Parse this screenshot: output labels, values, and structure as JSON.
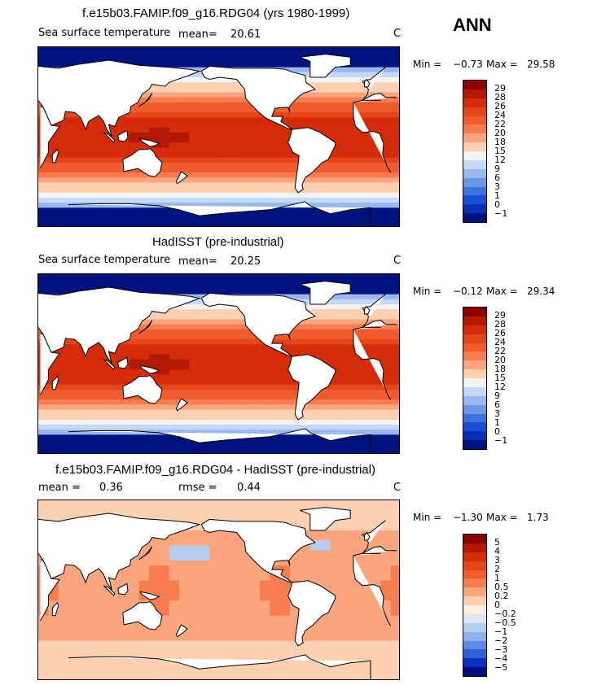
{
  "header": {
    "season": "ANN",
    "units": "C"
  },
  "panels": [
    {
      "title": "f.e15b03.FAMIP.f09_g16.RDG04 (yrs 1980-1999)",
      "variable": "Sea surface temperature",
      "mean_label": "mean=",
      "mean": "20.61",
      "units": "C",
      "min_label": "Min =",
      "min": "−0.73",
      "max_label": "Max =",
      "max": "29.58",
      "levels": [
        "29",
        "28",
        "26",
        "24",
        "22",
        "20",
        "18",
        "15",
        "12",
        "9",
        "6",
        "3",
        "1",
        "0",
        "−1"
      ],
      "colors": [
        "#8b0000",
        "#b31805",
        "#d42c0a",
        "#e64419",
        "#f05c2e",
        "#f77d50",
        "#fba57f",
        "#fdd0b2",
        "#f3f3f3",
        "#c6d8f5",
        "#98b8ef",
        "#6a97e6",
        "#3e72dd",
        "#1c4fd0",
        "#0a2fb6",
        "#00127e"
      ]
    },
    {
      "title": "HadISST (pre-industrial)",
      "variable": "Sea surface temperature",
      "mean_label": "mean=",
      "mean": "20.25",
      "units": "C",
      "min_label": "Min =",
      "min": "−0.12",
      "max_label": "Max =",
      "max": "29.34",
      "levels": [
        "29",
        "28",
        "26",
        "24",
        "22",
        "20",
        "18",
        "15",
        "12",
        "9",
        "6",
        "3",
        "1",
        "0",
        "−1"
      ],
      "colors": [
        "#8b0000",
        "#b31805",
        "#d42c0a",
        "#e64419",
        "#f05c2e",
        "#f77d50",
        "#fba57f",
        "#fdd0b2",
        "#f3f3f3",
        "#c6d8f5",
        "#98b8ef",
        "#6a97e6",
        "#3e72dd",
        "#1c4fd0",
        "#0a2fb6",
        "#00127e"
      ]
    },
    {
      "title": "f.e15b03.FAMIP.f09_g16.RDG04 - HadISST (pre-industrial)",
      "mean_label": "mean =",
      "mean": "0.36",
      "rmse_label": "rmse =",
      "rmse": "0.44",
      "units": "C",
      "min_label": "Min =",
      "min": "−1.30",
      "max_label": "Max =",
      "max": "1.73",
      "levels": [
        "5",
        "4",
        "3",
        "2",
        "1",
        "0.5",
        "0.2",
        "0",
        "−0.2",
        "−0.5",
        "−1",
        "−2",
        "−3",
        "−4",
        "−5"
      ],
      "colors": [
        "#8b0000",
        "#b31805",
        "#d42c0a",
        "#e64419",
        "#f05c2e",
        "#f77d50",
        "#fba57f",
        "#fdd0b2",
        "#fdeee0",
        "#dbe6f7",
        "#b6cdf2",
        "#8eb0ec",
        "#5e8ae3",
        "#2f5fd6",
        "#0b30bb",
        "#00127e"
      ]
    }
  ],
  "chart_data": [
    {
      "type": "heatmap",
      "title": "f.e15b03.FAMIP.f09_g16.RDG04 (yrs 1980-1999)",
      "variable": "Sea surface temperature",
      "units": "C",
      "mean": 20.61,
      "min": -0.73,
      "max": 29.58,
      "contour_levels": [
        -1,
        0,
        1,
        3,
        6,
        9,
        12,
        15,
        18,
        20,
        22,
        24,
        26,
        28,
        29
      ],
      "map": "global cylindrical equidistant, Pacific-centred"
    },
    {
      "type": "heatmap",
      "title": "HadISST (pre-industrial)",
      "variable": "Sea surface temperature",
      "units": "C",
      "mean": 20.25,
      "min": -0.12,
      "max": 29.34,
      "contour_levels": [
        -1,
        0,
        1,
        3,
        6,
        9,
        12,
        15,
        18,
        20,
        22,
        24,
        26,
        28,
        29
      ],
      "map": "global cylindrical equidistant, Pacific-centred"
    },
    {
      "type": "heatmap",
      "title": "f.e15b03.FAMIP.f09_g16.RDG04 - HadISST (pre-industrial)",
      "units": "C",
      "mean": 0.36,
      "rmse": 0.44,
      "min": -1.3,
      "max": 1.73,
      "contour_levels": [
        -5,
        -4,
        -3,
        -2,
        -1,
        -0.5,
        -0.2,
        0,
        0.2,
        0.5,
        1,
        2,
        3,
        4,
        5
      ],
      "map": "global cylindrical equidistant, Pacific-centred"
    }
  ]
}
